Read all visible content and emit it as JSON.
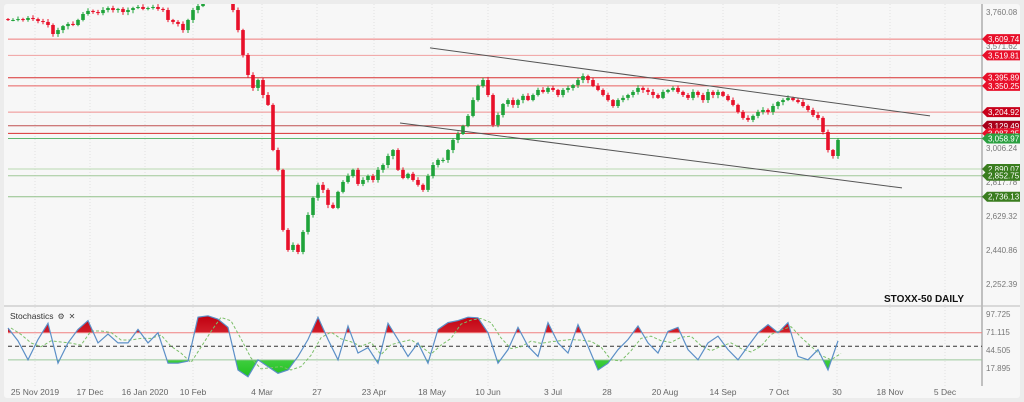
{
  "chart_data": {
    "type": "candlestick",
    "title": "STOXX-50 DAILY",
    "y_ticks": [
      "3,760.08",
      "3,571.62",
      "3,006.24",
      "2,817.78",
      "2,629.32",
      "2,440.86",
      "2,252.39"
    ],
    "ylim": [
      2252.39,
      3760.08
    ],
    "x_tick_labels": [
      "25 Nov 2019",
      "17 Dec",
      "16 Jan 2020",
      "10 Feb",
      "4 Mar",
      "27",
      "23 Apr",
      "18 May",
      "10 Jun",
      "3 Jul",
      "28",
      "20 Aug",
      "14 Sep",
      "7 Oct",
      "30",
      "18 Nov",
      "5 Dec"
    ],
    "grid": "vertical dotted",
    "up_color": "#1fa33a",
    "down_color": "#e8102a",
    "closes": [
      3716,
      3716,
      3721,
      3716,
      3727,
      3721,
      3710,
      3705,
      3688,
      3638,
      3660,
      3682,
      3694,
      3688,
      3716,
      3749,
      3766,
      3760,
      3754,
      3771,
      3782,
      3771,
      3777,
      3760,
      3771,
      3782,
      3788,
      3777,
      3782,
      3788,
      3777,
      3771,
      3716,
      3705,
      3694,
      3660,
      3716,
      3771,
      3793,
      3815,
      3843,
      3860,
      3871,
      3854,
      3826,
      3771,
      3660,
      3522,
      3411,
      3339,
      3383,
      3300,
      3245,
      2995,
      2885,
      2552,
      2441,
      2469,
      2430,
      2541,
      2635,
      2730,
      2802,
      2774,
      2691,
      2674,
      2763,
      2818,
      2851,
      2885,
      2807,
      2829,
      2851,
      2829,
      2885,
      2912,
      2962,
      2995,
      2885,
      2840,
      2863,
      2829,
      2802,
      2774,
      2851,
      2912,
      2940,
      2940,
      2995,
      3051,
      3084,
      3128,
      3184,
      3272,
      3350,
      3383,
      3300,
      3134,
      3189,
      3250,
      3272,
      3245,
      3272,
      3295,
      3272,
      3300,
      3328,
      3317,
      3339,
      3328,
      3300,
      3328,
      3339,
      3355,
      3383,
      3405,
      3383,
      3350,
      3328,
      3300,
      3272,
      3239,
      3272,
      3284,
      3300,
      3317,
      3339,
      3328,
      3317,
      3300,
      3284,
      3317,
      3328,
      3339,
      3317,
      3300,
      3284,
      3317,
      3300,
      3272,
      3317,
      3300,
      3317,
      3295,
      3272,
      3245,
      3206,
      3173,
      3162,
      3184,
      3206,
      3217,
      3206,
      3239,
      3261,
      3272,
      3284,
      3272,
      3261,
      3239,
      3217,
      3189,
      3173,
      3095,
      2995,
      2962,
      3051
    ],
    "levels": [
      {
        "label": "3,609.74",
        "value": 3609.74,
        "color": "#e8102a",
        "line": "#f07a7a"
      },
      {
        "label": "3,519.81",
        "value": 3519.81,
        "color": "#e8102a",
        "line": "#f0a0a0"
      },
      {
        "label": "3,395.89",
        "value": 3395.89,
        "color": "#e8102a",
        "line": "#d83030"
      },
      {
        "label": "3,350.25",
        "value": 3350.25,
        "color": "#e8102a",
        "line": "#e86060"
      },
      {
        "label": "3,204.92",
        "value": 3204.92,
        "color": "#c8001a",
        "line": "#f09090"
      },
      {
        "label": "3,129.49",
        "value": 3129.49,
        "color": "#a8001a",
        "line": "#c05050"
      },
      {
        "label": "3,087.25",
        "value": 3087.25,
        "color": "#e8102a",
        "line": "#d83030"
      },
      {
        "label": "3,058.97",
        "value": 3058.97,
        "color": "#2aa040",
        "line": "#60b870"
      },
      {
        "label": "2,890.07",
        "value": 2890.07,
        "color": "#3a7d1f",
        "line": "#b8d8b0"
      },
      {
        "label": "2,852.75",
        "value": 2852.75,
        "color": "#3a7d1f",
        "line": "#a0c898"
      },
      {
        "label": "2,736.13",
        "value": 2736.13,
        "color": "#3a7d1f",
        "line": "#90c088"
      }
    ],
    "trendlines": [
      {
        "from_price": 3561,
        "to_price": 3184,
        "color": "#555555"
      },
      {
        "from_price": 3145,
        "to_price": 2785,
        "color": "#555555"
      }
    ]
  },
  "stochastics": {
    "label": "Stochastics",
    "y_ticks": [
      "97.725",
      "71.115",
      "44.505",
      "17.895"
    ],
    "ylim": [
      10,
      100
    ],
    "overbought": 70,
    "mid": 50,
    "oversold": 30,
    "k_color": "#5b8fc7",
    "d_color": "#7cbf6a",
    "overbought_fill": "#f04848",
    "oversold_fill": "#4fdc4f",
    "k_values": [
      77,
      58,
      30,
      60,
      84,
      25,
      55,
      75,
      88,
      55,
      68,
      55,
      55,
      75,
      55,
      70,
      25,
      25,
      28,
      93,
      95,
      90,
      78,
      15,
      5,
      30,
      20,
      10,
      15,
      35,
      60,
      93,
      60,
      30,
      80,
      40,
      48,
      25,
      84,
      60,
      35,
      55,
      25,
      75,
      85,
      88,
      93,
      92,
      70,
      25,
      45,
      78,
      50,
      35,
      85,
      55,
      40,
      82,
      50,
      15,
      25,
      45,
      60,
      80,
      55,
      40,
      72,
      78,
      45,
      30,
      55,
      65,
      45,
      30,
      50,
      70,
      82,
      70,
      85,
      35,
      30,
      45,
      15,
      58
    ]
  }
}
